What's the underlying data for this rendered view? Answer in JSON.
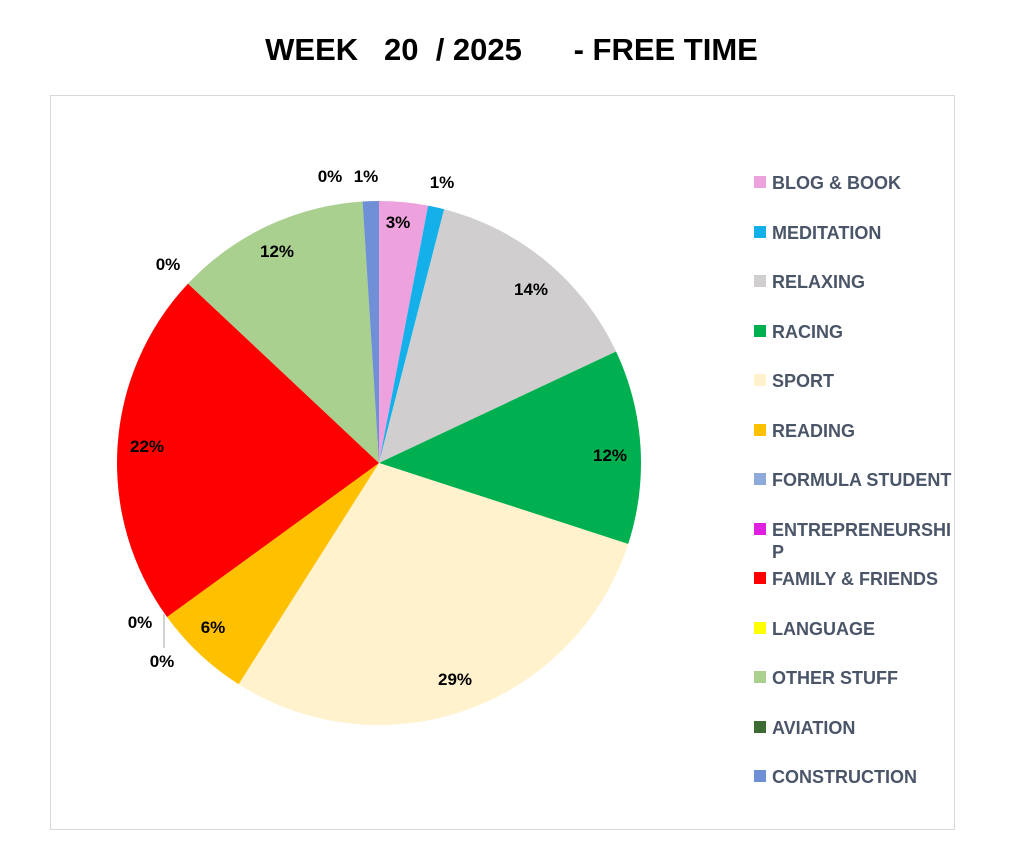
{
  "title": "WEEK   20  / 2025      - FREE TIME",
  "chart_data": {
    "type": "pie",
    "title": "WEEK   20  / 2025      - FREE TIME",
    "legend_position": "right",
    "slices": [
      {
        "label": "BLOG & BOOK",
        "value": 3,
        "display": "3%",
        "color": "#eea2dd"
      },
      {
        "label": "MEDITATION",
        "value": 1,
        "display": "1%",
        "color": "#13b0ea"
      },
      {
        "label": "RELAXING",
        "value": 14,
        "display": "14%",
        "color": "#d0cece"
      },
      {
        "label": "RACING",
        "value": 12,
        "display": "12%",
        "color": "#00b050"
      },
      {
        "label": "SPORT",
        "value": 29,
        "display": "29%",
        "color": "#fff2cc"
      },
      {
        "label": "READING",
        "value": 6,
        "display": "6%",
        "color": "#ffc000"
      },
      {
        "label": "FORMULA STUDENT",
        "value": 0,
        "display": "0%",
        "color": "#8eaadb"
      },
      {
        "label": "ENTREPRENEURSHIP",
        "value": 0,
        "display": "0%",
        "color": "#e020e0"
      },
      {
        "label": "FAMILY & FRIENDS",
        "value": 22,
        "display": "22%",
        "color": "#ff0000"
      },
      {
        "label": "LANGUAGE",
        "value": 0,
        "display": "0%",
        "color": "#ffff00"
      },
      {
        "label": "OTHER STUFF",
        "value": 12,
        "display": "12%",
        "color": "#a9d08e"
      },
      {
        "label": "AVIATION",
        "value": 0,
        "display": "0%",
        "color": "#3d6b34"
      },
      {
        "label": "CONSTRUCTION",
        "value": 1,
        "display": "1%",
        "color": "#6f8fd6"
      }
    ]
  }
}
